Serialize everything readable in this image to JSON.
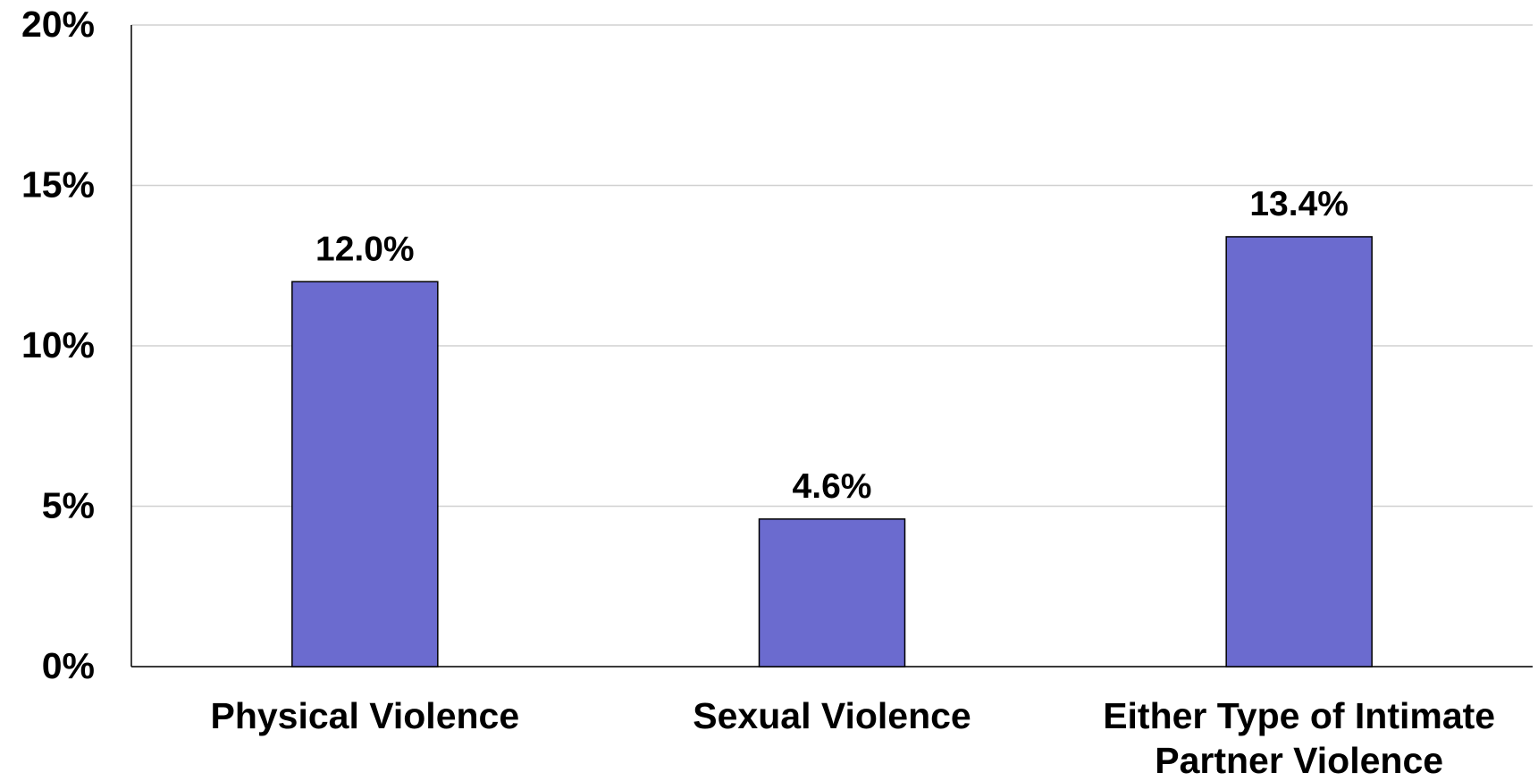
{
  "chart_data": {
    "type": "bar",
    "categories": [
      "Physical Violence",
      "Sexual Violence",
      "Either Type of Intimate Partner Violence"
    ],
    "values": [
      12.0,
      4.6,
      13.4
    ],
    "value_labels": [
      "12.0%",
      "4.6%",
      "13.4%"
    ],
    "color": "#6b6bcf",
    "ylim": [
      0,
      20
    ],
    "yticks": [
      {
        "value": 0,
        "label": "0%"
      },
      {
        "value": 5,
        "label": "5%"
      },
      {
        "value": 10,
        "label": "10%"
      },
      {
        "value": 15,
        "label": "15%"
      },
      {
        "value": 20,
        "label": "20%"
      }
    ],
    "grid": true
  }
}
